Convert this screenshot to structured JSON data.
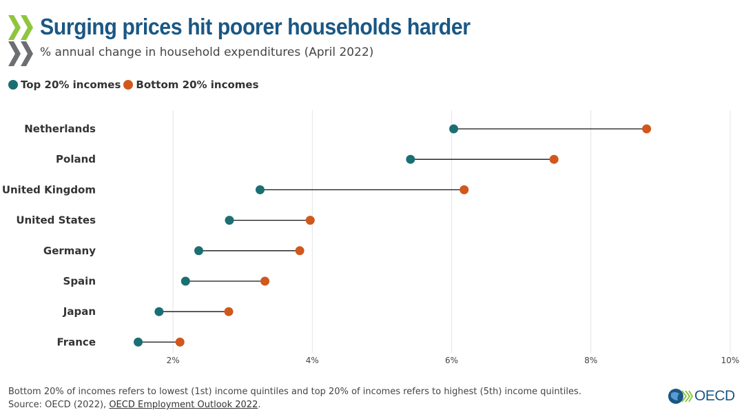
{
  "header": {
    "title": "Surging prices hit poorer households harder",
    "subtitle": "% annual change in household expenditures (April 2022)"
  },
  "legend": {
    "top": {
      "label": "Top 20% incomes",
      "color": "#1b6f72"
    },
    "bottom": {
      "label": "Bottom 20% incomes",
      "color": "#d0581c"
    }
  },
  "chart_data": {
    "type": "dumbbell",
    "categories": [
      "Netherlands",
      "Poland",
      "United Kingdom",
      "United States",
      "Germany",
      "Spain",
      "Japan",
      "France"
    ],
    "series": [
      {
        "name": "Top 20% incomes",
        "color": "#1b6f72",
        "values": [
          6.03,
          5.41,
          3.25,
          2.81,
          2.37,
          2.18,
          1.8,
          1.5
        ]
      },
      {
        "name": "Bottom 20% incomes",
        "color": "#d0581c",
        "values": [
          8.8,
          7.47,
          6.18,
          3.97,
          3.82,
          3.32,
          2.8,
          2.1
        ]
      }
    ],
    "x_ticks": [
      "2%",
      "4%",
      "6%",
      "8%",
      "10%"
    ],
    "x_tick_values": [
      2,
      4,
      6,
      8,
      10
    ],
    "xlim": [
      1,
      10
    ],
    "grid": "vertical",
    "legend_position": "top-left"
  },
  "footer": {
    "note": "Bottom 20% of incomes refers to lowest (1st) income quintiles and top 20% of incomes refers to highest (5th) income quintiles.",
    "source_prefix": "Source: OECD (2022), ",
    "source_link": "OECD Employment Outlook 2022",
    "source_suffix": "."
  },
  "brand": {
    "name": "OECD"
  }
}
